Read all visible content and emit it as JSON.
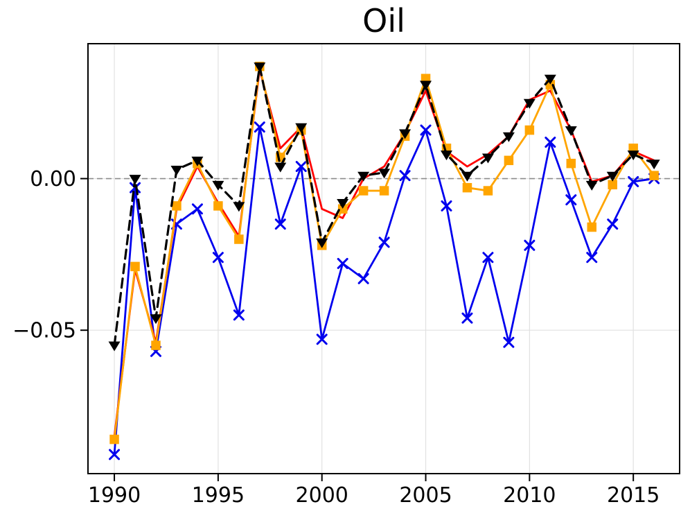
{
  "chart_data": {
    "type": "line",
    "title": "Oil",
    "legend": "none",
    "grid": true,
    "grid_color": "#e1e1e1",
    "background_color": "#ffffff",
    "x": [
      1990,
      1991,
      1992,
      1993,
      1994,
      1995,
      1996,
      1997,
      1998,
      1999,
      2000,
      2001,
      2002,
      2003,
      2004,
      2005,
      2006,
      2007,
      2008,
      2009,
      2010,
      2011,
      2012,
      2013,
      2014,
      2015,
      2016
    ],
    "series": [
      {
        "name": "blue-x-series",
        "color": "#0000ee",
        "line_style": "solid",
        "marker": "x",
        "values": [
          -0.091,
          -0.003,
          -0.057,
          -0.015,
          -0.01,
          -0.026,
          -0.045,
          0.017,
          -0.015,
          0.004,
          -0.053,
          -0.028,
          -0.033,
          -0.021,
          0.001,
          0.016,
          -0.009,
          -0.046,
          -0.026,
          -0.054,
          -0.022,
          0.012,
          -0.007,
          -0.026,
          -0.015,
          -0.001,
          0.0
        ]
      },
      {
        "name": "red-line-series",
        "color": "#ff0000",
        "line_style": "solid",
        "marker": "none",
        "values": [
          -0.085,
          -0.03,
          -0.054,
          -0.01,
          0.004,
          -0.008,
          -0.019,
          0.036,
          0.01,
          0.017,
          -0.01,
          -0.013,
          0.0,
          0.004,
          0.015,
          0.029,
          0.009,
          0.004,
          0.008,
          0.014,
          0.026,
          0.029,
          0.016,
          -0.001,
          0.001,
          0.009,
          0.006
        ]
      },
      {
        "name": "orange-square-series",
        "color": "#ffa500",
        "line_style": "solid",
        "marker": "square",
        "values": [
          -0.086,
          -0.029,
          -0.055,
          -0.009,
          0.005,
          -0.009,
          -0.02,
          0.037,
          0.007,
          0.016,
          -0.022,
          -0.01,
          -0.004,
          -0.004,
          0.014,
          0.033,
          0.01,
          -0.003,
          -0.004,
          0.006,
          0.016,
          0.031,
          0.005,
          -0.016,
          -0.002,
          0.01,
          0.001
        ]
      },
      {
        "name": "black-dashed-triangle-series",
        "color": "#000000",
        "line_style": "dashed",
        "marker": "triangle-down",
        "values": [
          -0.055,
          0.0,
          -0.046,
          0.003,
          0.006,
          -0.002,
          -0.009,
          0.037,
          0.004,
          0.017,
          -0.021,
          -0.008,
          0.001,
          0.002,
          0.015,
          0.031,
          0.008,
          0.001,
          0.007,
          0.014,
          0.025,
          0.033,
          0.016,
          -0.002,
          0.001,
          0.008,
          0.005
        ]
      }
    ],
    "x_tick_values": [
      1990,
      1995,
      2000,
      2005,
      2010,
      2015
    ],
    "x_tick_labels": [
      "1990",
      "1995",
      "2000",
      "2005",
      "2010",
      "2015"
    ],
    "y_tick_values": [
      0.0,
      -0.05
    ],
    "y_tick_labels": [
      "0.00",
      "−0.05"
    ],
    "xlim": [
      1988.73,
      2017.23
    ],
    "ylim": [
      -0.0973,
      0.0445
    ],
    "zero_line": {
      "value": 0.0,
      "color": "#8c8c8c",
      "style": "dashed"
    }
  }
}
